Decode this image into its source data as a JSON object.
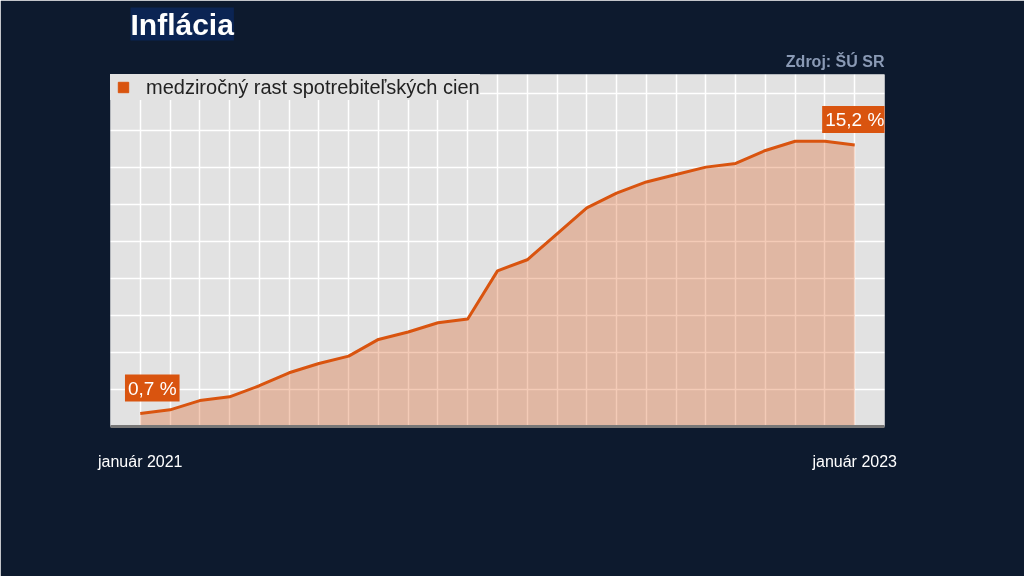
{
  "chart_data": {
    "type": "area",
    "title": "Inflácia",
    "annotations": [
      "Zdroj: ŠÚ SR"
    ],
    "categories": [
      "január 2021",
      null,
      null,
      null,
      null,
      null,
      null,
      null,
      null,
      null,
      null,
      null,
      null,
      null,
      null,
      null,
      null,
      null,
      null,
      null,
      null,
      null,
      null,
      null,
      "január 2023"
    ],
    "series": [
      {
        "name": "medziročný rast spotrebiteľských cien",
        "color": "#d9540f",
        "values": [
          0.7,
          0.9,
          1.4,
          1.6,
          2.2,
          2.9,
          3.4,
          3.8,
          4.7,
          5.1,
          5.6,
          5.8,
          8.4,
          9.0,
          10.4,
          11.8,
          12.6,
          13.2,
          13.6,
          14.0,
          14.2,
          14.9,
          15.4,
          15.4,
          15.2
        ],
        "value_labels": [
          "0,7 %",
          null,
          null,
          null,
          null,
          null,
          null,
          null,
          null,
          null,
          null,
          null,
          null,
          null,
          null,
          null,
          null,
          null,
          null,
          null,
          null,
          null,
          null,
          null,
          "15,2 %"
        ]
      }
    ],
    "ylim": [
      0,
      19
    ],
    "yticks": [
      {
        "value": 0,
        "label": null
      },
      {
        "value": 2,
        "label": null
      },
      {
        "value": 4,
        "label": null
      },
      {
        "value": 6,
        "label": null
      },
      {
        "value": 8,
        "label": null
      },
      {
        "value": 10,
        "label": null
      },
      {
        "value": 12,
        "label": null
      },
      {
        "value": 14,
        "label": null
      },
      {
        "value": 16,
        "label": null
      },
      {
        "value": 18,
        "label": null
      }
    ],
    "tick_labels": "x",
    "grid": true,
    "legend": "top left"
  }
}
